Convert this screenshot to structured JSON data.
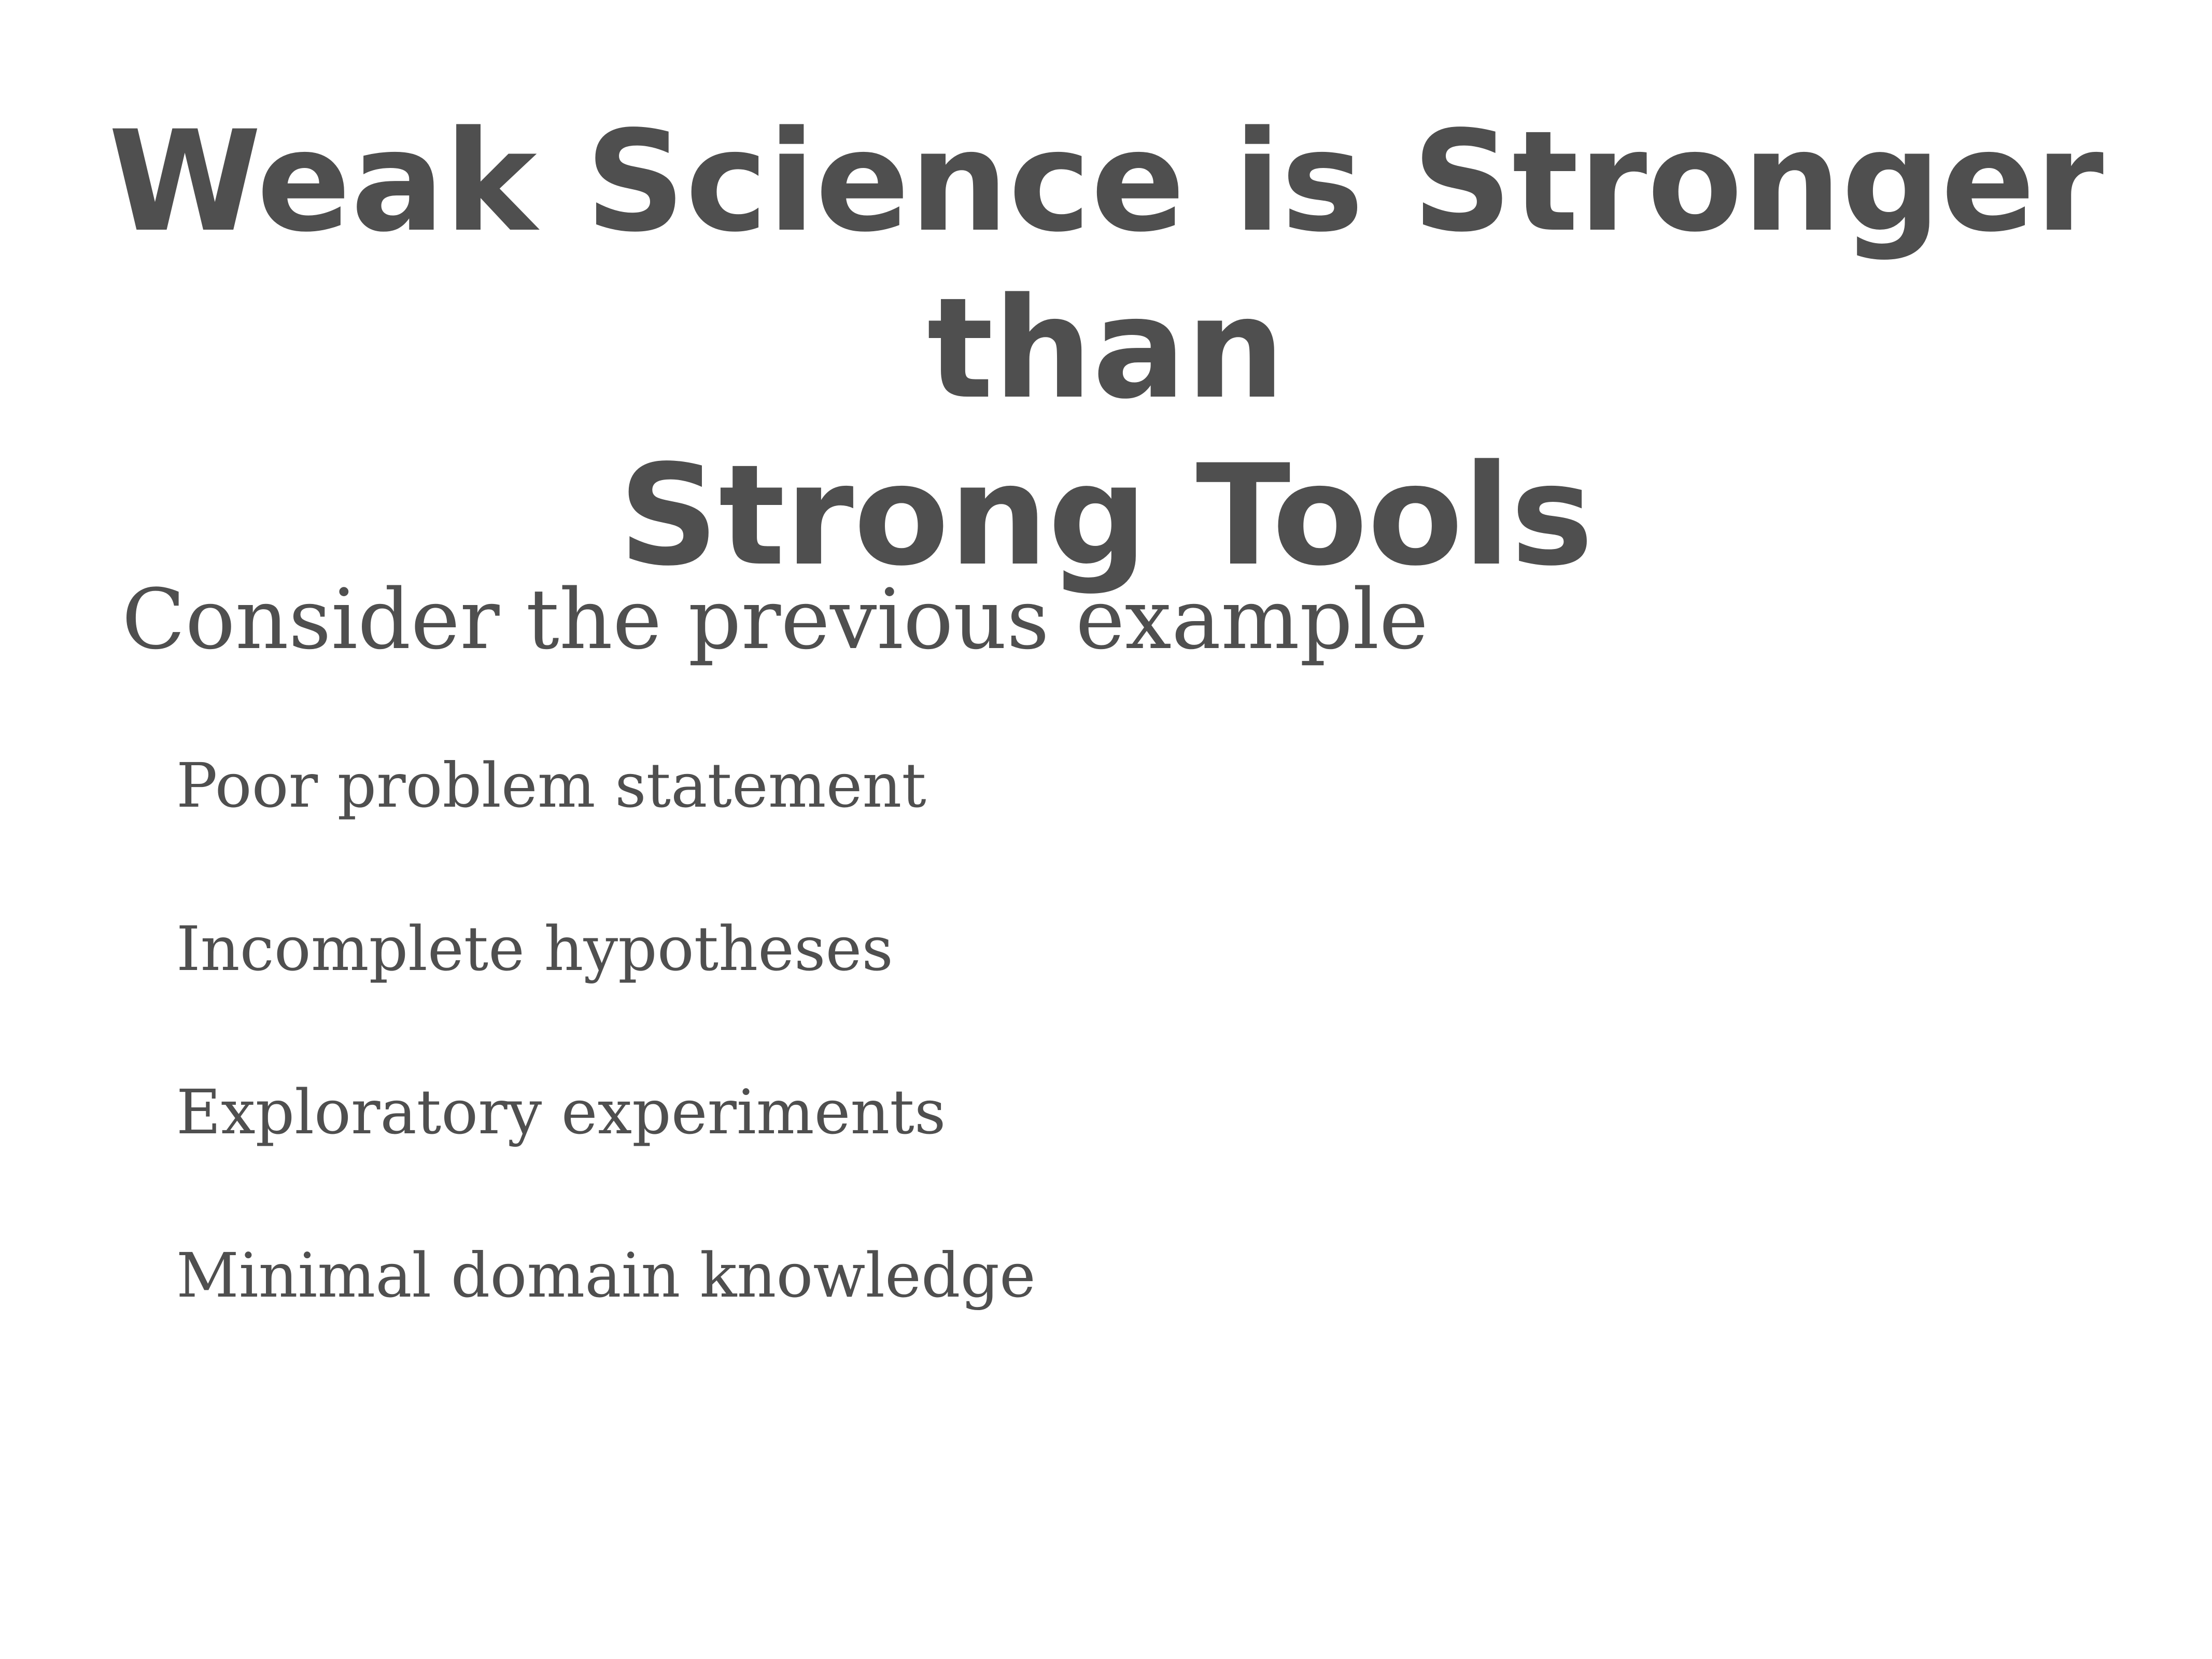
{
  "slide": {
    "title_line1": "Weak Science is Stronger than",
    "title_line2": "Strong Tools",
    "intro": "Consider the previous example",
    "bullets": [
      "Poor problem statement",
      "Incomplete hypotheses",
      "Exploratory experiments",
      "Minimal domain knowledge"
    ]
  }
}
